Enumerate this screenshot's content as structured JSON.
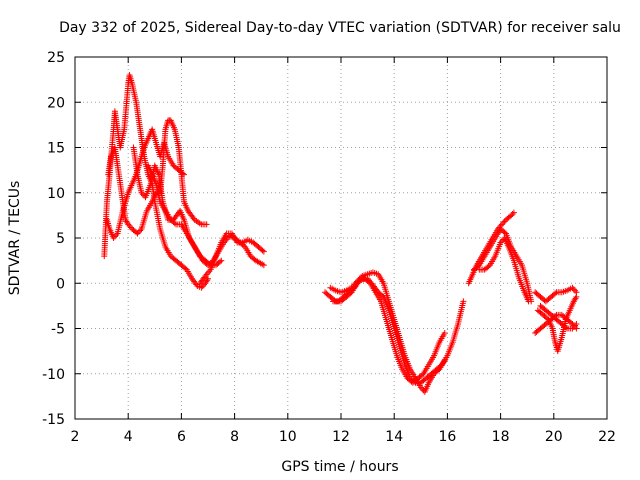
{
  "chart_data": {
    "type": "scatter",
    "title": "Day 332 of 2025, Sidereal Day-to-day VTEC variation (SDTVAR) for receiver salu",
    "xlabel": "GPS time / hours",
    "ylabel": "SDTVAR / TECUs",
    "xlim": [
      2,
      22
    ],
    "ylim": [
      -15,
      25
    ],
    "xticks": [
      2,
      4,
      6,
      8,
      10,
      12,
      14,
      16,
      18,
      20,
      22
    ],
    "yticks": [
      -15,
      -10,
      -5,
      0,
      5,
      10,
      15,
      20,
      25
    ],
    "grid": true,
    "marker": "+",
    "series": [
      {
        "name": "SDTVAR",
        "color": "#ff0000",
        "tracks": [
          [
            [
              3.1,
              3
            ],
            [
              3.15,
              6
            ],
            [
              3.2,
              9
            ],
            [
              3.3,
              12
            ],
            [
              3.45,
              17
            ],
            [
              3.5,
              19
            ],
            [
              3.6,
              17
            ],
            [
              3.7,
              15
            ],
            [
              3.85,
              17
            ],
            [
              4.0,
              22
            ],
            [
              4.05,
              23
            ],
            [
              4.15,
              22
            ],
            [
              4.3,
              20
            ],
            [
              4.4,
              18
            ],
            [
              4.5,
              16
            ],
            [
              4.6,
              14
            ],
            [
              4.75,
              12
            ],
            [
              4.9,
              11
            ],
            [
              5.0,
              9
            ],
            [
              5.2,
              6
            ],
            [
              5.4,
              4
            ],
            [
              5.6,
              3
            ],
            [
              5.8,
              2.5
            ],
            [
              6.0,
              2
            ],
            [
              6.2,
              1.5
            ],
            [
              6.4,
              0.5
            ],
            [
              6.6,
              -0.3
            ],
            [
              6.75,
              -0.5
            ],
            [
              6.9,
              0
            ],
            [
              7.0,
              0.5
            ]
          ],
          [
            [
              3.2,
              7
            ],
            [
              3.3,
              6
            ],
            [
              3.45,
              5
            ],
            [
              3.6,
              5.5
            ],
            [
              3.8,
              8
            ],
            [
              3.9,
              9
            ],
            [
              4.0,
              10
            ],
            [
              4.15,
              11
            ],
            [
              4.3,
              12
            ],
            [
              4.4,
              13
            ],
            [
              4.5,
              14
            ],
            [
              4.6,
              15
            ],
            [
              4.75,
              16
            ],
            [
              4.9,
              17
            ],
            [
              5.0,
              16
            ],
            [
              5.2,
              14
            ],
            [
              5.35,
              15.5
            ],
            [
              5.5,
              14
            ],
            [
              5.7,
              13
            ],
            [
              5.9,
              12.5
            ],
            [
              6.1,
              12
            ]
          ],
          [
            [
              3.25,
              12
            ],
            [
              3.35,
              14
            ],
            [
              3.5,
              15
            ],
            [
              3.6,
              13
            ],
            [
              3.8,
              9
            ],
            [
              3.9,
              7
            ],
            [
              4.0,
              6.5
            ],
            [
              4.15,
              6
            ],
            [
              4.35,
              5.5
            ],
            [
              4.5,
              6
            ],
            [
              4.7,
              8
            ],
            [
              4.9,
              9
            ],
            [
              5.05,
              10
            ],
            [
              5.2,
              10
            ],
            [
              5.3,
              13
            ],
            [
              5.4,
              17
            ],
            [
              5.5,
              18
            ],
            [
              5.6,
              18
            ],
            [
              5.75,
              17
            ],
            [
              5.9,
              15
            ],
            [
              6.0,
              12
            ],
            [
              6.1,
              9
            ],
            [
              6.25,
              8
            ],
            [
              6.5,
              7
            ],
            [
              6.75,
              6.5
            ],
            [
              6.95,
              6.5
            ]
          ],
          [
            [
              4.2,
              15
            ],
            [
              4.35,
              12
            ],
            [
              4.5,
              10
            ],
            [
              4.65,
              9.5
            ],
            [
              4.85,
              11
            ],
            [
              5.0,
              13
            ],
            [
              5.15,
              12
            ],
            [
              5.3,
              9
            ],
            [
              5.5,
              7
            ],
            [
              5.7,
              7
            ],
            [
              5.95,
              8
            ],
            [
              6.1,
              7
            ],
            [
              6.3,
              5
            ],
            [
              6.5,
              4
            ],
            [
              6.7,
              3
            ],
            [
              6.9,
              2.5
            ],
            [
              7.1,
              2
            ],
            [
              7.3,
              2
            ],
            [
              7.5,
              2.5
            ]
          ],
          [
            [
              4.75,
              13
            ],
            [
              4.9,
              12
            ],
            [
              5.05,
              11
            ],
            [
              5.2,
              9
            ],
            [
              5.4,
              8
            ],
            [
              5.6,
              7
            ],
            [
              5.8,
              6.5
            ],
            [
              6.0,
              6.5
            ],
            [
              6.2,
              5.5
            ],
            [
              6.4,
              4.5
            ],
            [
              6.6,
              3.5
            ],
            [
              6.8,
              2.5
            ],
            [
              7.0,
              2
            ],
            [
              7.2,
              2.5
            ],
            [
              7.4,
              3.5
            ],
            [
              7.6,
              4.5
            ],
            [
              7.8,
              5.2
            ],
            [
              8.0,
              5
            ],
            [
              8.2,
              4.5
            ],
            [
              8.4,
              4
            ],
            [
              8.6,
              3
            ],
            [
              8.8,
              2.5
            ],
            [
              9.1,
              2
            ]
          ],
          [
            [
              6.7,
              0
            ],
            [
              6.9,
              0.8
            ],
            [
              7.1,
              1.5
            ],
            [
              7.3,
              3
            ],
            [
              7.5,
              4.5
            ],
            [
              7.7,
              5.5
            ],
            [
              7.9,
              5.5
            ],
            [
              8.1,
              4.5
            ],
            [
              8.3,
              4.5
            ],
            [
              8.5,
              4.8
            ],
            [
              8.7,
              4.5
            ],
            [
              8.9,
              4
            ],
            [
              9.1,
              3.5
            ]
          ],
          [
            [
              11.4,
              -1
            ],
            [
              11.6,
              -1.5
            ],
            [
              11.8,
              -2
            ],
            [
              12.0,
              -2
            ],
            [
              12.2,
              -1.5
            ],
            [
              12.4,
              -1
            ],
            [
              12.6,
              0
            ],
            [
              12.8,
              0.5
            ],
            [
              13.0,
              0.5
            ],
            [
              13.2,
              -0.2
            ],
            [
              13.4,
              -1
            ],
            [
              13.6,
              -1.5
            ],
            [
              13.8,
              -3
            ],
            [
              14.0,
              -5
            ],
            [
              14.2,
              -7
            ],
            [
              14.4,
              -9
            ],
            [
              14.6,
              -10.5
            ],
            [
              14.8,
              -11
            ],
            [
              15.0,
              -11
            ],
            [
              15.2,
              -10.5
            ],
            [
              15.4,
              -10
            ],
            [
              15.6,
              -9.5
            ],
            [
              15.8,
              -9
            ],
            [
              16.0,
              -8
            ],
            [
              16.2,
              -6.5
            ],
            [
              16.4,
              -4.5
            ],
            [
              16.6,
              -2
            ]
          ],
          [
            [
              11.6,
              -0.5
            ],
            [
              11.8,
              -0.8
            ],
            [
              12.0,
              -1
            ],
            [
              12.2,
              -0.8
            ],
            [
              12.4,
              -0.5
            ],
            [
              12.6,
              0.2
            ],
            [
              12.8,
              0.8
            ],
            [
              13.0,
              1
            ],
            [
              13.2,
              1.2
            ],
            [
              13.4,
              1
            ],
            [
              13.6,
              0
            ],
            [
              13.8,
              -2
            ],
            [
              14.0,
              -4
            ],
            [
              14.2,
              -6
            ],
            [
              14.4,
              -8
            ],
            [
              14.6,
              -9.5
            ],
            [
              14.8,
              -10.5
            ],
            [
              15.0,
              -11.5
            ],
            [
              15.15,
              -12
            ],
            [
              15.3,
              -11
            ],
            [
              15.5,
              -10
            ],
            [
              15.7,
              -9.5
            ],
            [
              15.9,
              -8.5
            ]
          ],
          [
            [
              11.7,
              -2
            ],
            [
              11.9,
              -2
            ],
            [
              12.1,
              -1.5
            ],
            [
              12.3,
              -1
            ],
            [
              12.5,
              -0.5
            ],
            [
              12.7,
              0.3
            ],
            [
              12.9,
              0.5
            ],
            [
              13.1,
              0
            ],
            [
              13.3,
              -1
            ],
            [
              13.5,
              -2
            ],
            [
              13.7,
              -4
            ],
            [
              13.9,
              -6
            ],
            [
              14.1,
              -8
            ],
            [
              14.3,
              -9.5
            ],
            [
              14.5,
              -10.5
            ],
            [
              14.7,
              -11
            ],
            [
              14.9,
              -10.5
            ],
            [
              15.1,
              -10
            ],
            [
              15.3,
              -9
            ],
            [
              15.5,
              -8
            ],
            [
              15.7,
              -6.5
            ],
            [
              15.9,
              -5.5
            ]
          ],
          [
            [
              16.8,
              0
            ],
            [
              16.95,
              1
            ],
            [
              17.1,
              2
            ],
            [
              17.3,
              3
            ],
            [
              17.5,
              4
            ],
            [
              17.7,
              5
            ],
            [
              17.9,
              6
            ],
            [
              18.05,
              6.5
            ],
            [
              18.2,
              7
            ],
            [
              18.4,
              7.5
            ],
            [
              18.5,
              7.8
            ]
          ],
          [
            [
              17.0,
              1.5
            ],
            [
              17.2,
              2
            ],
            [
              17.4,
              3
            ],
            [
              17.6,
              4
            ],
            [
              17.8,
              5
            ],
            [
              18.0,
              6
            ],
            [
              18.2,
              5.5
            ],
            [
              18.4,
              4
            ],
            [
              18.6,
              3
            ],
            [
              18.8,
              2
            ],
            [
              19.0,
              0
            ],
            [
              19.15,
              -2
            ]
          ],
          [
            [
              17.2,
              1.5
            ],
            [
              17.4,
              1.5
            ],
            [
              17.6,
              2
            ],
            [
              17.8,
              3
            ],
            [
              18.0,
              4.5
            ],
            [
              18.15,
              5
            ],
            [
              18.3,
              4
            ],
            [
              18.5,
              2.5
            ],
            [
              18.7,
              0.5
            ],
            [
              18.9,
              -1
            ],
            [
              19.05,
              -2
            ]
          ],
          [
            [
              19.3,
              -1
            ],
            [
              19.5,
              -1.5
            ],
            [
              19.7,
              -2
            ],
            [
              19.9,
              -1.5
            ],
            [
              20.1,
              -1
            ],
            [
              20.3,
              -1
            ],
            [
              20.5,
              -0.8
            ],
            [
              20.7,
              -0.5
            ],
            [
              20.85,
              -1
            ]
          ],
          [
            [
              19.3,
              -5.5
            ],
            [
              19.5,
              -5
            ],
            [
              19.7,
              -4.5
            ],
            [
              19.9,
              -4
            ],
            [
              20.1,
              -3.5
            ],
            [
              20.3,
              -3.5
            ],
            [
              20.5,
              -4
            ],
            [
              20.7,
              -4.5
            ],
            [
              20.85,
              -5
            ]
          ],
          [
            [
              19.4,
              -3
            ],
            [
              19.6,
              -3.5
            ],
            [
              19.8,
              -4
            ],
            [
              19.95,
              -5
            ],
            [
              20.05,
              -6.5
            ],
            [
              20.15,
              -7.5
            ],
            [
              20.3,
              -6
            ],
            [
              20.45,
              -4
            ],
            [
              20.6,
              -3
            ],
            [
              20.75,
              -2
            ],
            [
              20.85,
              -1.5
            ]
          ],
          [
            [
              19.5,
              -2.5
            ],
            [
              19.7,
              -3
            ],
            [
              19.9,
              -3.5
            ],
            [
              20.1,
              -4
            ],
            [
              20.3,
              -4.5
            ],
            [
              20.5,
              -5
            ],
            [
              20.7,
              -5
            ],
            [
              20.85,
              -4.5
            ]
          ]
        ]
      }
    ]
  }
}
